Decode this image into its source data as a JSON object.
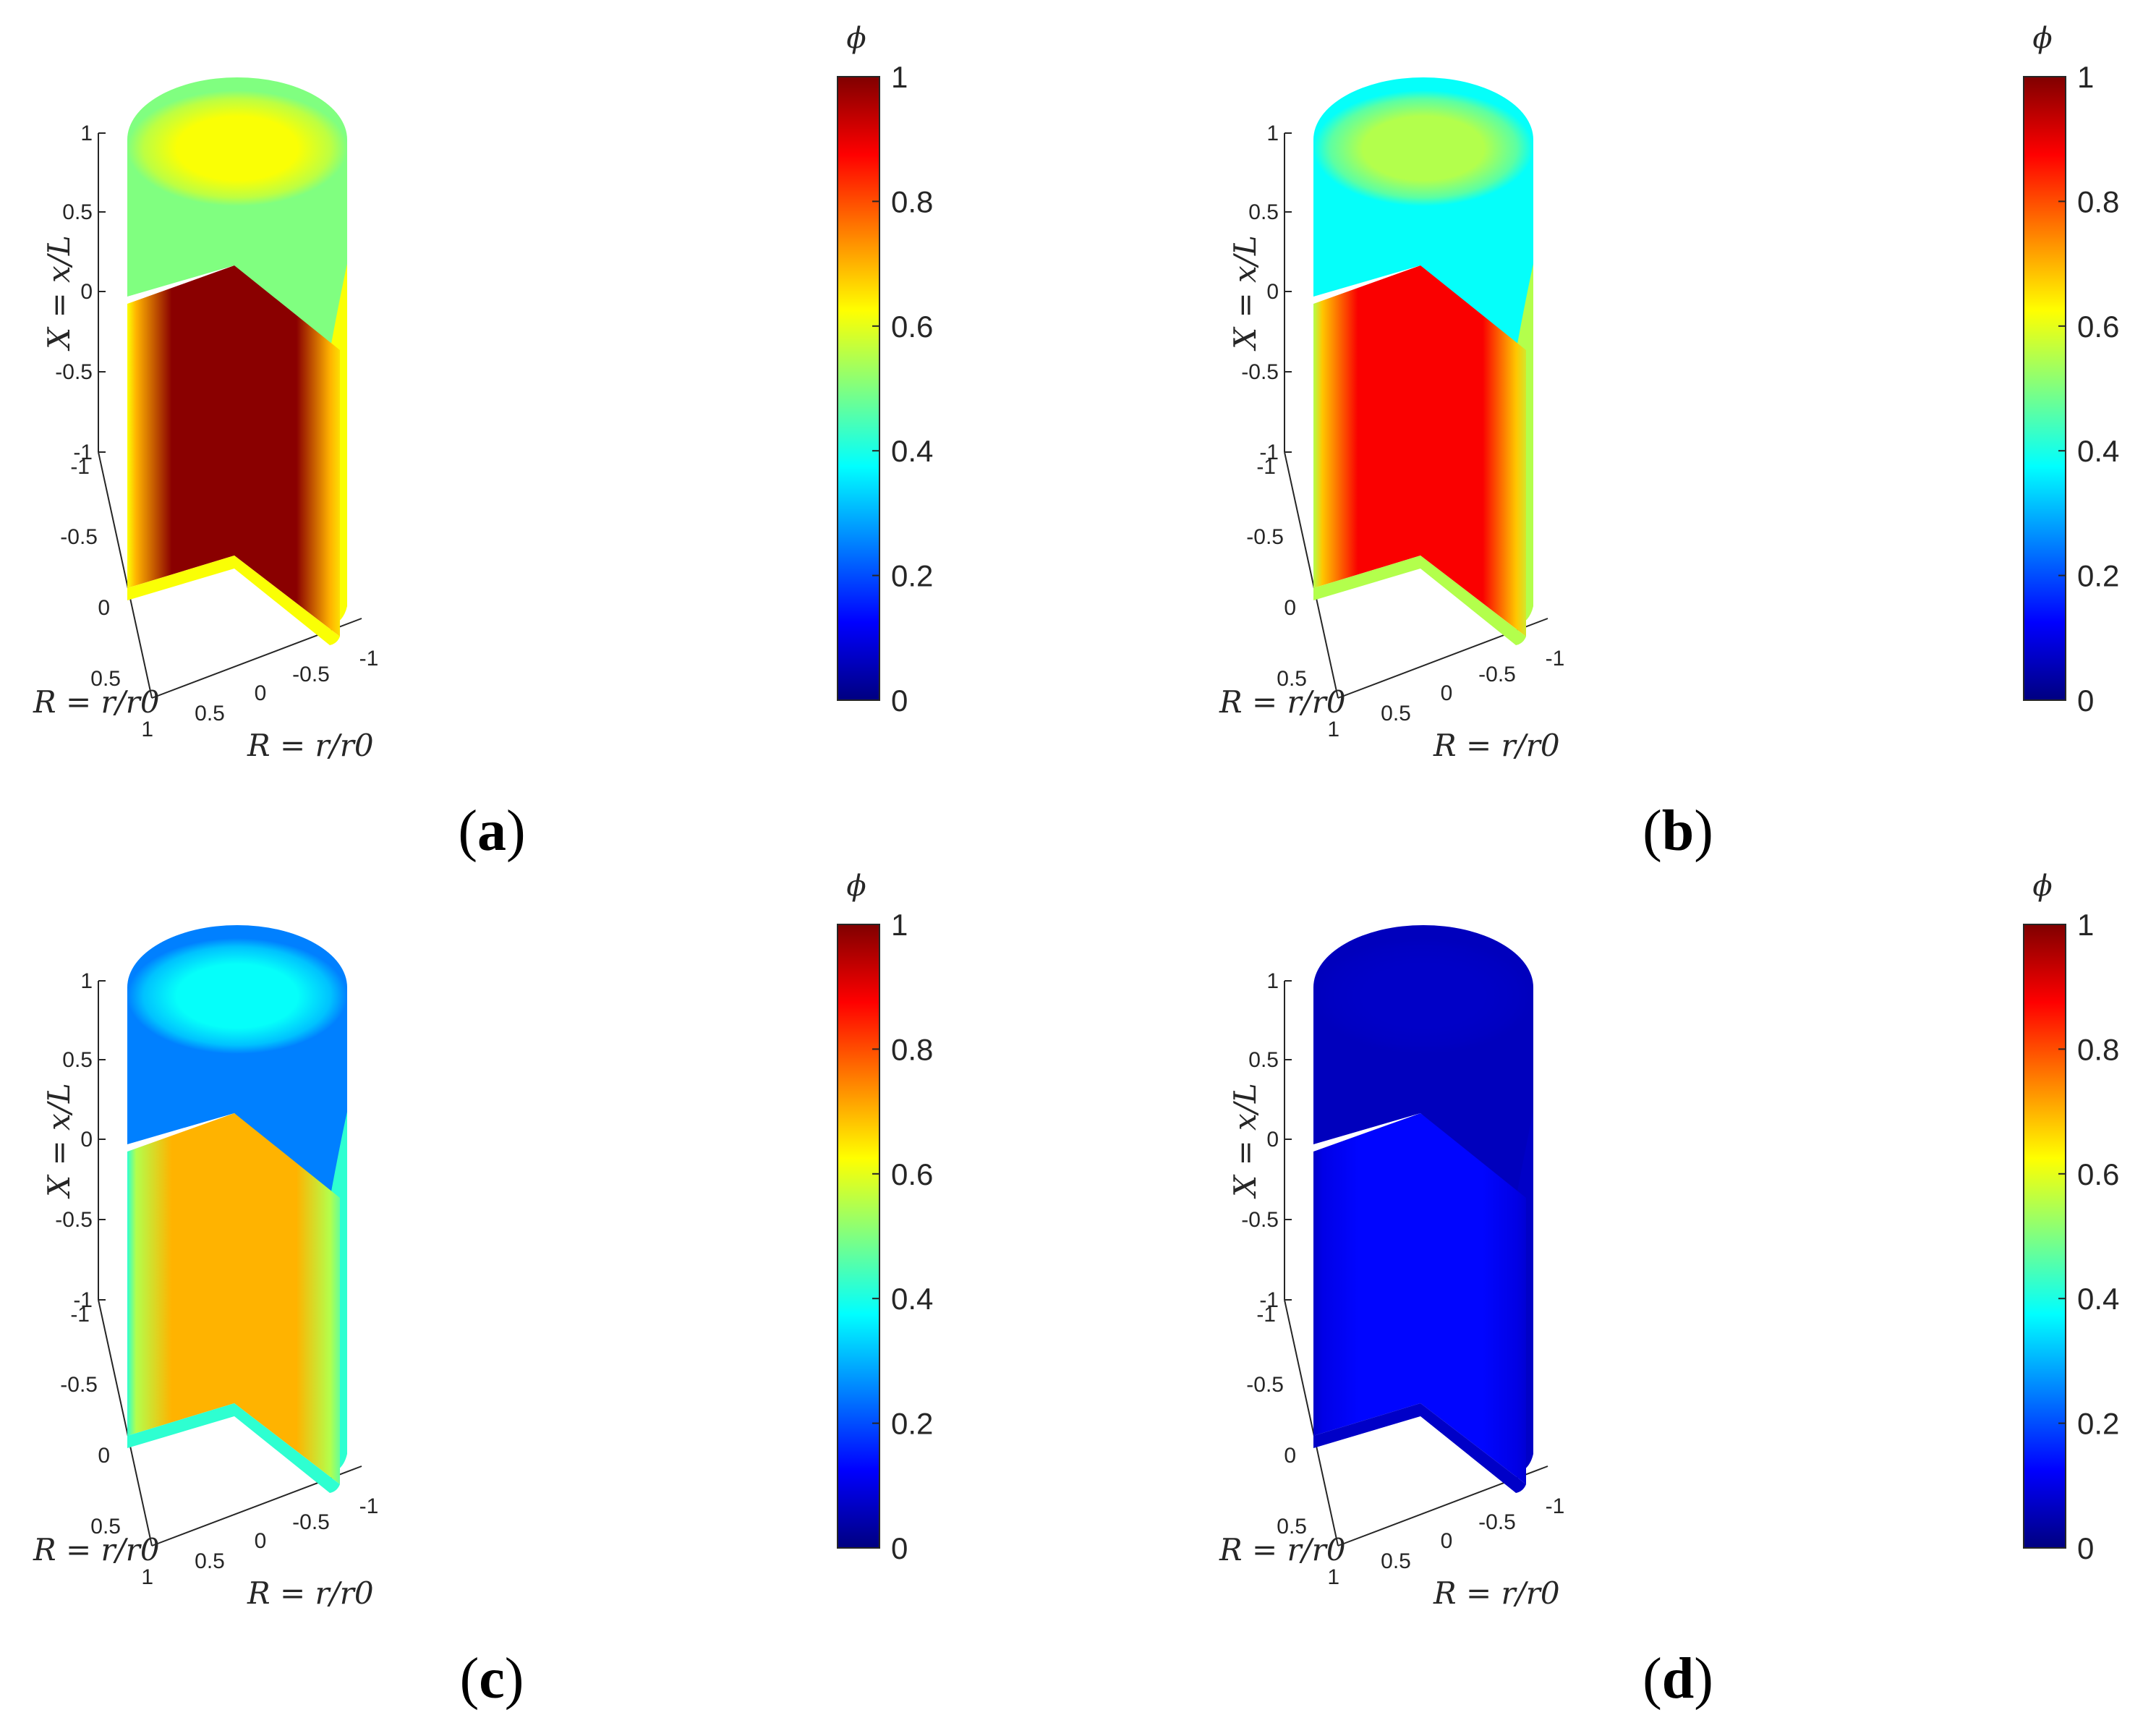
{
  "chart_data": [
    {
      "panel_label": "a",
      "type": "3d-cutaway-cylinder-contour",
      "axes": {
        "x_label": "X = x/L",
        "r_label_left": "R = r/r0",
        "r_label_bottom": "R = r/r0",
        "x_ticks": [
          "1",
          "0.5",
          "0",
          "-0.5",
          "-1"
        ],
        "r_ticks_left": [
          "-1",
          "-0.5",
          "0",
          "0.5",
          "1"
        ],
        "r_ticks_bottom": [
          "0.5",
          "0",
          "-0.5",
          "-1"
        ],
        "x_range": [
          -1,
          1
        ],
        "r_range": [
          -1,
          1
        ]
      },
      "colorbar": {
        "label": "ϕ",
        "ticks": [
          "1",
          "0.8",
          "0.6",
          "0.4",
          "0.2",
          "0"
        ],
        "range": [
          0,
          1
        ],
        "colormap": "jet"
      },
      "field": {
        "core_value": 0.99,
        "mid_value": 0.7,
        "surface_value": 0.62,
        "top_center_value": 0.62,
        "top_edge_value": 0.5
      }
    },
    {
      "panel_label": "b",
      "type": "3d-cutaway-cylinder-contour",
      "axes": {
        "x_label": "X = x/L",
        "r_label_left": "R = r/r0",
        "r_label_bottom": "R = r/r0",
        "x_ticks": [
          "1",
          "0.5",
          "0",
          "-0.5",
          "-1"
        ],
        "r_ticks_left": [
          "-1",
          "-0.5",
          "0",
          "0.5",
          "1"
        ],
        "r_ticks_bottom": [
          "0.5",
          "0",
          "-0.5",
          "-1"
        ],
        "x_range": [
          -1,
          1
        ],
        "r_range": [
          -1,
          1
        ]
      },
      "colorbar": {
        "label": "ϕ",
        "ticks": [
          "1",
          "0.8",
          "0.6",
          "0.4",
          "0.2",
          "0"
        ],
        "range": [
          0,
          1
        ],
        "colormap": "jet"
      },
      "field": {
        "core_value": 0.88,
        "mid_value": 0.68,
        "surface_value": 0.55,
        "top_center_value": 0.55,
        "top_edge_value": 0.38
      }
    },
    {
      "panel_label": "c",
      "type": "3d-cutaway-cylinder-contour",
      "axes": {
        "x_label": "X = x/L",
        "r_label_left": "R = r/r0",
        "r_label_bottom": "R = r/r0",
        "x_ticks": [
          "1",
          "0.5",
          "0",
          "-0.5",
          "-1"
        ],
        "r_ticks_left": [
          "-1",
          "-0.5",
          "0",
          "0.5",
          "1"
        ],
        "r_ticks_bottom": [
          "0.5",
          "0",
          "-0.5",
          "-1"
        ],
        "x_range": [
          -1,
          1
        ],
        "r_range": [
          -1,
          1
        ]
      },
      "colorbar": {
        "label": "ϕ",
        "ticks": [
          "1",
          "0.8",
          "0.6",
          "0.4",
          "0.2",
          "0"
        ],
        "range": [
          0,
          1
        ],
        "colormap": "jet"
      },
      "field": {
        "core_value": 0.7,
        "mid_value": 0.55,
        "surface_value": 0.42,
        "top_center_value": 0.38,
        "top_edge_value": 0.25
      }
    },
    {
      "panel_label": "d",
      "type": "3d-cutaway-cylinder-contour",
      "axes": {
        "x_label": "X = x/L",
        "r_label_left": "R = r/r0",
        "r_label_bottom": "R = r/r0",
        "x_ticks": [
          "1",
          "0.5",
          "0",
          "-0.5",
          "-1"
        ],
        "r_ticks_left": [
          "-1",
          "-0.5",
          "0",
          "0.5",
          "1"
        ],
        "r_ticks_bottom": [
          "0.5",
          "0",
          "-0.5",
          "-1"
        ],
        "x_range": [
          -1,
          1
        ],
        "r_range": [
          -1,
          1
        ]
      },
      "colorbar": {
        "label": "ϕ",
        "ticks": [
          "1",
          "0.8",
          "0.6",
          "0.4",
          "0.2",
          "0"
        ],
        "range": [
          0,
          1
        ],
        "colormap": "jet"
      },
      "field": {
        "core_value": 0.13,
        "mid_value": 0.1,
        "surface_value": 0.07,
        "top_center_value": 0.07,
        "top_edge_value": 0.06
      }
    }
  ]
}
